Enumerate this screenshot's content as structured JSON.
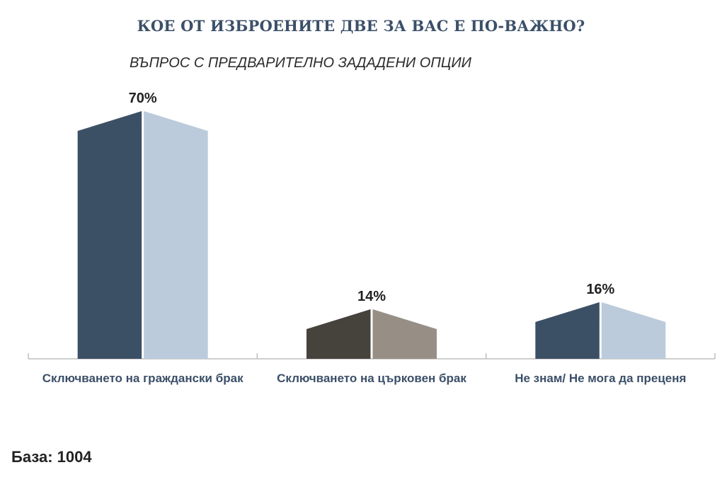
{
  "title": "КОЕ ОТ ИЗБРОЕНИТЕ ДВЕ ЗА ВАС Е ПО-ВАЖНО?",
  "subtitle": "ВЪПРОС С ПРЕДВАРИТЕЛНО ЗАДАДЕНИ ОПЦИИ",
  "base_label": "База: 1004",
  "chart_data": {
    "type": "bar",
    "categories": [
      "Сключването на граждански брак",
      "Сключването на църковен брак",
      "Не знам/ Не мога да преценя"
    ],
    "values": [
      70,
      14,
      16
    ],
    "value_labels": [
      "70%",
      "14%",
      "16%"
    ],
    "unit": "%",
    "ylim": [
      0,
      80
    ],
    "grid": false,
    "legend": "none",
    "colors": [
      {
        "dark": "#3c5065",
        "light": "#bccbdb"
      },
      {
        "dark": "#46423c",
        "light": "#978f86"
      },
      {
        "dark": "#3c5065",
        "light": "#bccbdb"
      }
    ]
  }
}
